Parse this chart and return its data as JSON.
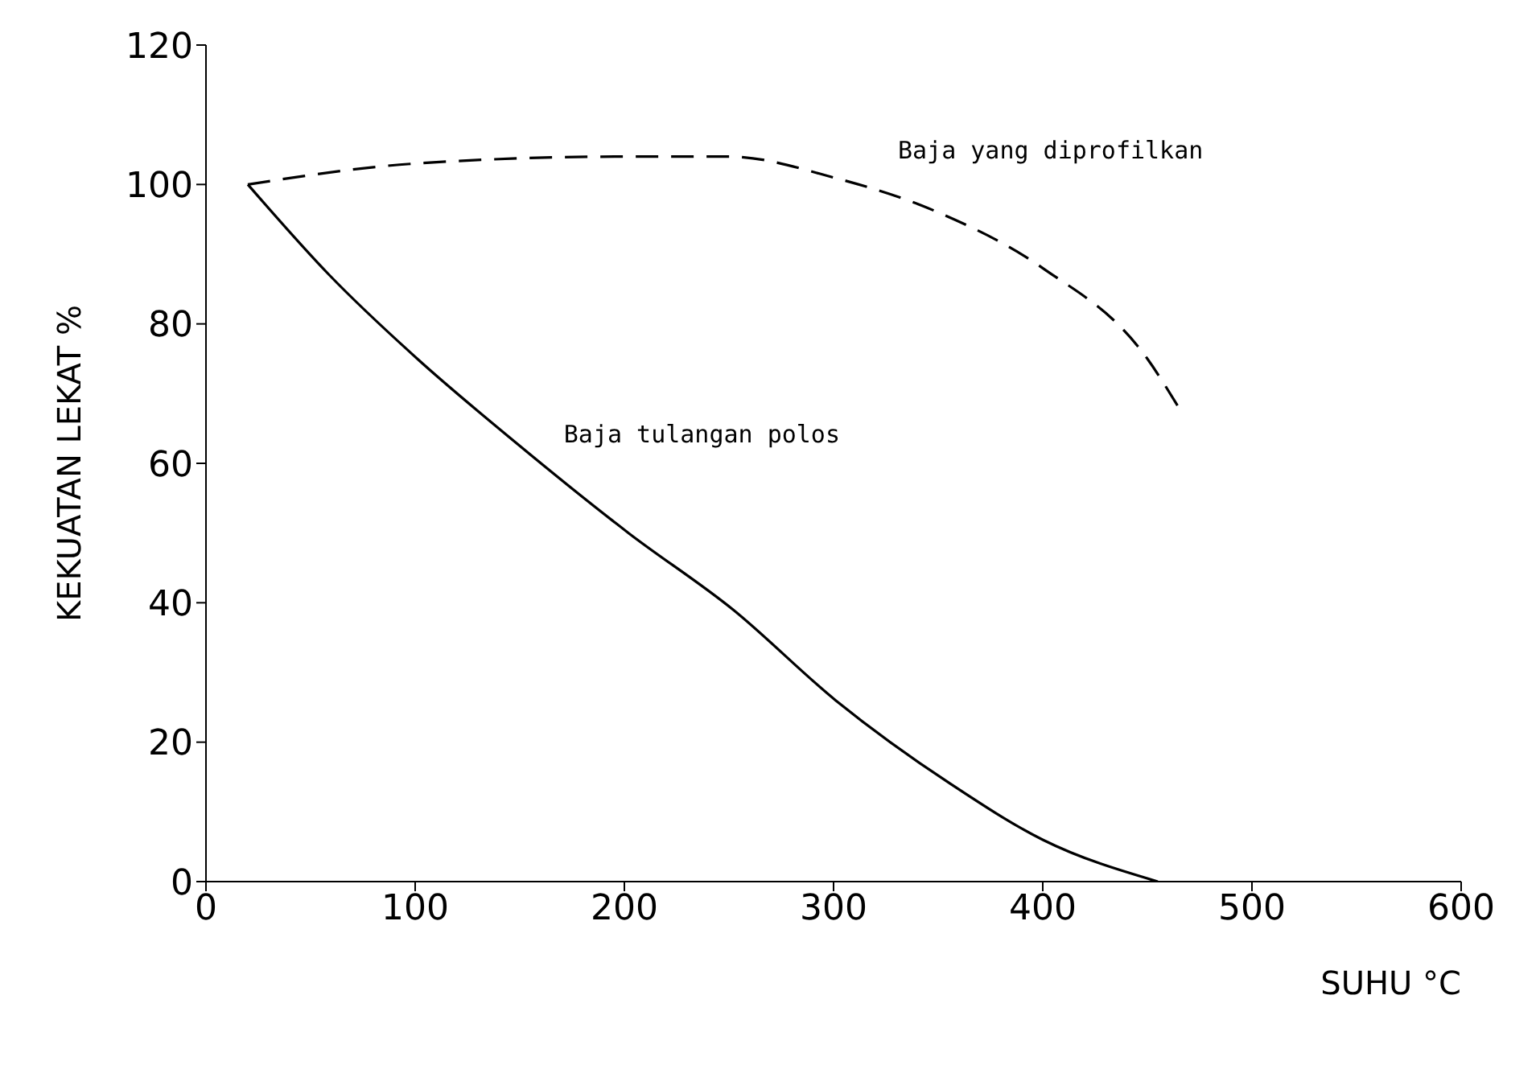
{
  "chart_data": {
    "type": "line",
    "xlabel": "SUHU °C",
    "ylabel": "KEKUATAN LEKAT %",
    "xlim": [
      0,
      600
    ],
    "xticks": [
      0,
      100,
      200,
      300,
      400,
      500,
      600
    ],
    "ylim": [
      0,
      120
    ],
    "yticks": [
      0,
      20,
      40,
      60,
      80,
      100,
      120
    ],
    "grid": false,
    "legend": false,
    "marker": "none",
    "series": [
      {
        "name": "Baja yang diprofilkan",
        "color": "#000000",
        "line_style": "dashed",
        "x": [
          20,
          100,
          200,
          250,
          300,
          350,
          400,
          450,
          465
        ],
        "values": [
          100,
          103,
          104,
          104,
          101,
          96,
          88,
          75,
          68
        ]
      },
      {
        "name": "Baja tulangan polos",
        "color": "#000000",
        "line_style": "solid",
        "x": [
          20,
          59,
          101,
          148,
          202,
          252,
          301,
          356,
          400,
          455
        ],
        "values": [
          100,
          87,
          75,
          63,
          50,
          39,
          26,
          14,
          6,
          0
        ]
      }
    ]
  }
}
